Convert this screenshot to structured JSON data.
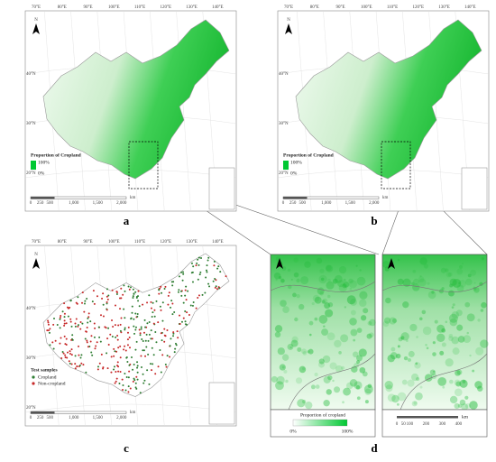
{
  "panels": [
    {
      "label": "a",
      "legend_title": "Proportion of Cropland",
      "legend_high": "100%",
      "legend_low": "0%"
    },
    {
      "label": "b",
      "legend_title": "Proportion of Cropland",
      "legend_high": "100%",
      "legend_low": "0%"
    },
    {
      "label": "c",
      "legend_title": "Test samples",
      "legend_items": [
        "Cropland",
        "Non-cropland"
      ]
    },
    {
      "label": "d",
      "legend_title": "Proportion of cropland",
      "legend_low": "0%",
      "legend_high": "100%",
      "scale_ticks": [
        "0",
        "50",
        "100",
        "200",
        "300",
        "400"
      ],
      "scale_unit": "km"
    }
  ],
  "longitudes": [
    "70°E",
    "80°E",
    "90°E",
    "100°E",
    "110°E",
    "120°E",
    "130°E",
    "140°E"
  ],
  "latitudes": [
    "40°N",
    "30°N",
    "20°N"
  ],
  "north": "N",
  "scale_ticks": [
    "0",
    "250",
    "500",
    "1,000",
    "1,500",
    "2,000"
  ],
  "scale_unit": "km"
}
